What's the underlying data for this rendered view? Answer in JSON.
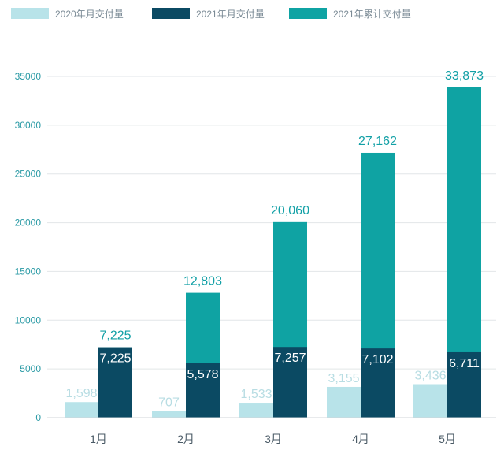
{
  "chart_data": {
    "type": "bar",
    "categories": [
      "1月",
      "2月",
      "3月",
      "4月",
      "5月"
    ],
    "series": [
      {
        "name": "2020年月交付量",
        "values": [
          1598,
          707,
          1533,
          3155,
          3436
        ],
        "labels": [
          "1,598",
          "707",
          "1,533",
          "3,155",
          "3,436"
        ],
        "color": "#b8e3e9"
      },
      {
        "name": "2021年月交付量",
        "values": [
          7225,
          5578,
          7257,
          7102,
          6711
        ],
        "labels": [
          "7,225",
          "5,578",
          "7,257",
          "7,102",
          "6,711"
        ],
        "color": "#0b4a63"
      },
      {
        "name": "2021年累计交付量",
        "values": [
          7225,
          12803,
          20060,
          27162,
          33873
        ],
        "labels": [
          "7,225",
          "12,803",
          "20,060",
          "27,162",
          "33,873"
        ],
        "color": "#0fa3a3"
      }
    ],
    "y_ticks": [
      "0",
      "5000",
      "10000",
      "15000",
      "20000",
      "25000",
      "30000",
      "35000"
    ],
    "ylim": [
      0,
      35000
    ],
    "grid": true,
    "legend": "top-left"
  }
}
